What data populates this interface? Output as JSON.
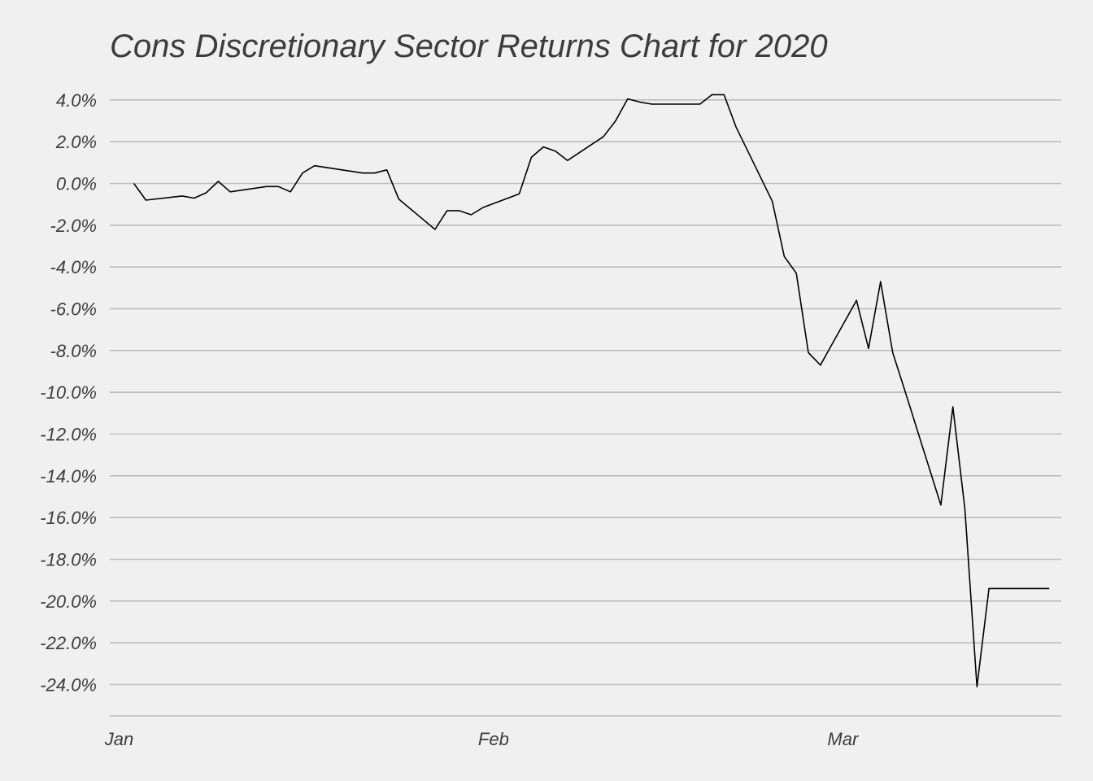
{
  "chart_data": {
    "type": "line",
    "title": "Cons Discretionary Sector Returns Chart for 2020",
    "xlabel": "",
    "ylabel": "",
    "grid": true,
    "legend": "none",
    "ylim": [
      -25.5,
      4.5
    ],
    "xlim": [
      "2019-12-31",
      "2020-03-19"
    ],
    "y_ticks": [
      4,
      2,
      0,
      -2,
      -4,
      -6,
      -8,
      -10,
      -12,
      -14,
      -16,
      -18,
      -20,
      -22,
      -24
    ],
    "y_tick_labels": [
      "4.0%",
      "2.0%",
      "0.0%",
      "-2.0%",
      "-4.0%",
      "-6.0%",
      "-8.0%",
      "-10.0%",
      "-12.0%",
      "-14.0%",
      "-16.0%",
      "-18.0%",
      "-20.0%",
      "-22.0%",
      "-24.0%"
    ],
    "x_ticks": [
      "2020-01-01",
      "2020-02-01",
      "2020-03-01"
    ],
    "x_tick_labels": [
      "Jan",
      "Feb",
      "Mar"
    ],
    "colors": {
      "background": "#f0f0f0",
      "line": "#000000",
      "grid": "#bdbdbd",
      "text": "#3c3c3c"
    },
    "series": [
      {
        "x": [
          "2020-01-02",
          "2020-01-03",
          "2020-01-06",
          "2020-01-07",
          "2020-01-08",
          "2020-01-09",
          "2020-01-10",
          "2020-01-13",
          "2020-01-14",
          "2020-01-15",
          "2020-01-16",
          "2020-01-17",
          "2020-01-21",
          "2020-01-22",
          "2020-01-23",
          "2020-01-24",
          "2020-01-27",
          "2020-01-28",
          "2020-01-29",
          "2020-01-30",
          "2020-01-31",
          "2020-02-03",
          "2020-02-04",
          "2020-02-05",
          "2020-02-06",
          "2020-02-07",
          "2020-02-10",
          "2020-02-11",
          "2020-02-12",
          "2020-02-13",
          "2020-02-14",
          "2020-02-18",
          "2020-02-19",
          "2020-02-20",
          "2020-02-21",
          "2020-02-24",
          "2020-02-25",
          "2020-02-26",
          "2020-02-27",
          "2020-02-28",
          "2020-03-02",
          "2020-03-03",
          "2020-03-04",
          "2020-03-05",
          "2020-03-06",
          "2020-03-09",
          "2020-03-10",
          "2020-03-11",
          "2020-03-12",
          "2020-03-13",
          "2020-03-16",
          "2020-03-17",
          "2020-03-18"
        ],
        "y": [
          0.0,
          -0.8,
          -0.6,
          -0.7,
          -0.45,
          0.1,
          -0.4,
          -0.15,
          -0.15,
          -0.4,
          0.5,
          0.85,
          0.5,
          0.5,
          0.65,
          -0.75,
          -2.2,
          -1.3,
          -1.3,
          -1.5,
          -1.15,
          -0.5,
          1.25,
          1.75,
          1.55,
          1.1,
          2.25,
          3.0,
          4.05,
          3.9,
          3.8,
          3.8,
          4.25,
          4.25,
          2.7,
          -0.85,
          -3.5,
          -4.3,
          -8.1,
          -8.7,
          -5.6,
          -7.9,
          -4.7,
          -8.1,
          -9.9,
          -15.4,
          -10.7,
          -15.6,
          -24.1,
          -19.4,
          -19.4,
          -19.4,
          -19.4
        ]
      }
    ]
  }
}
